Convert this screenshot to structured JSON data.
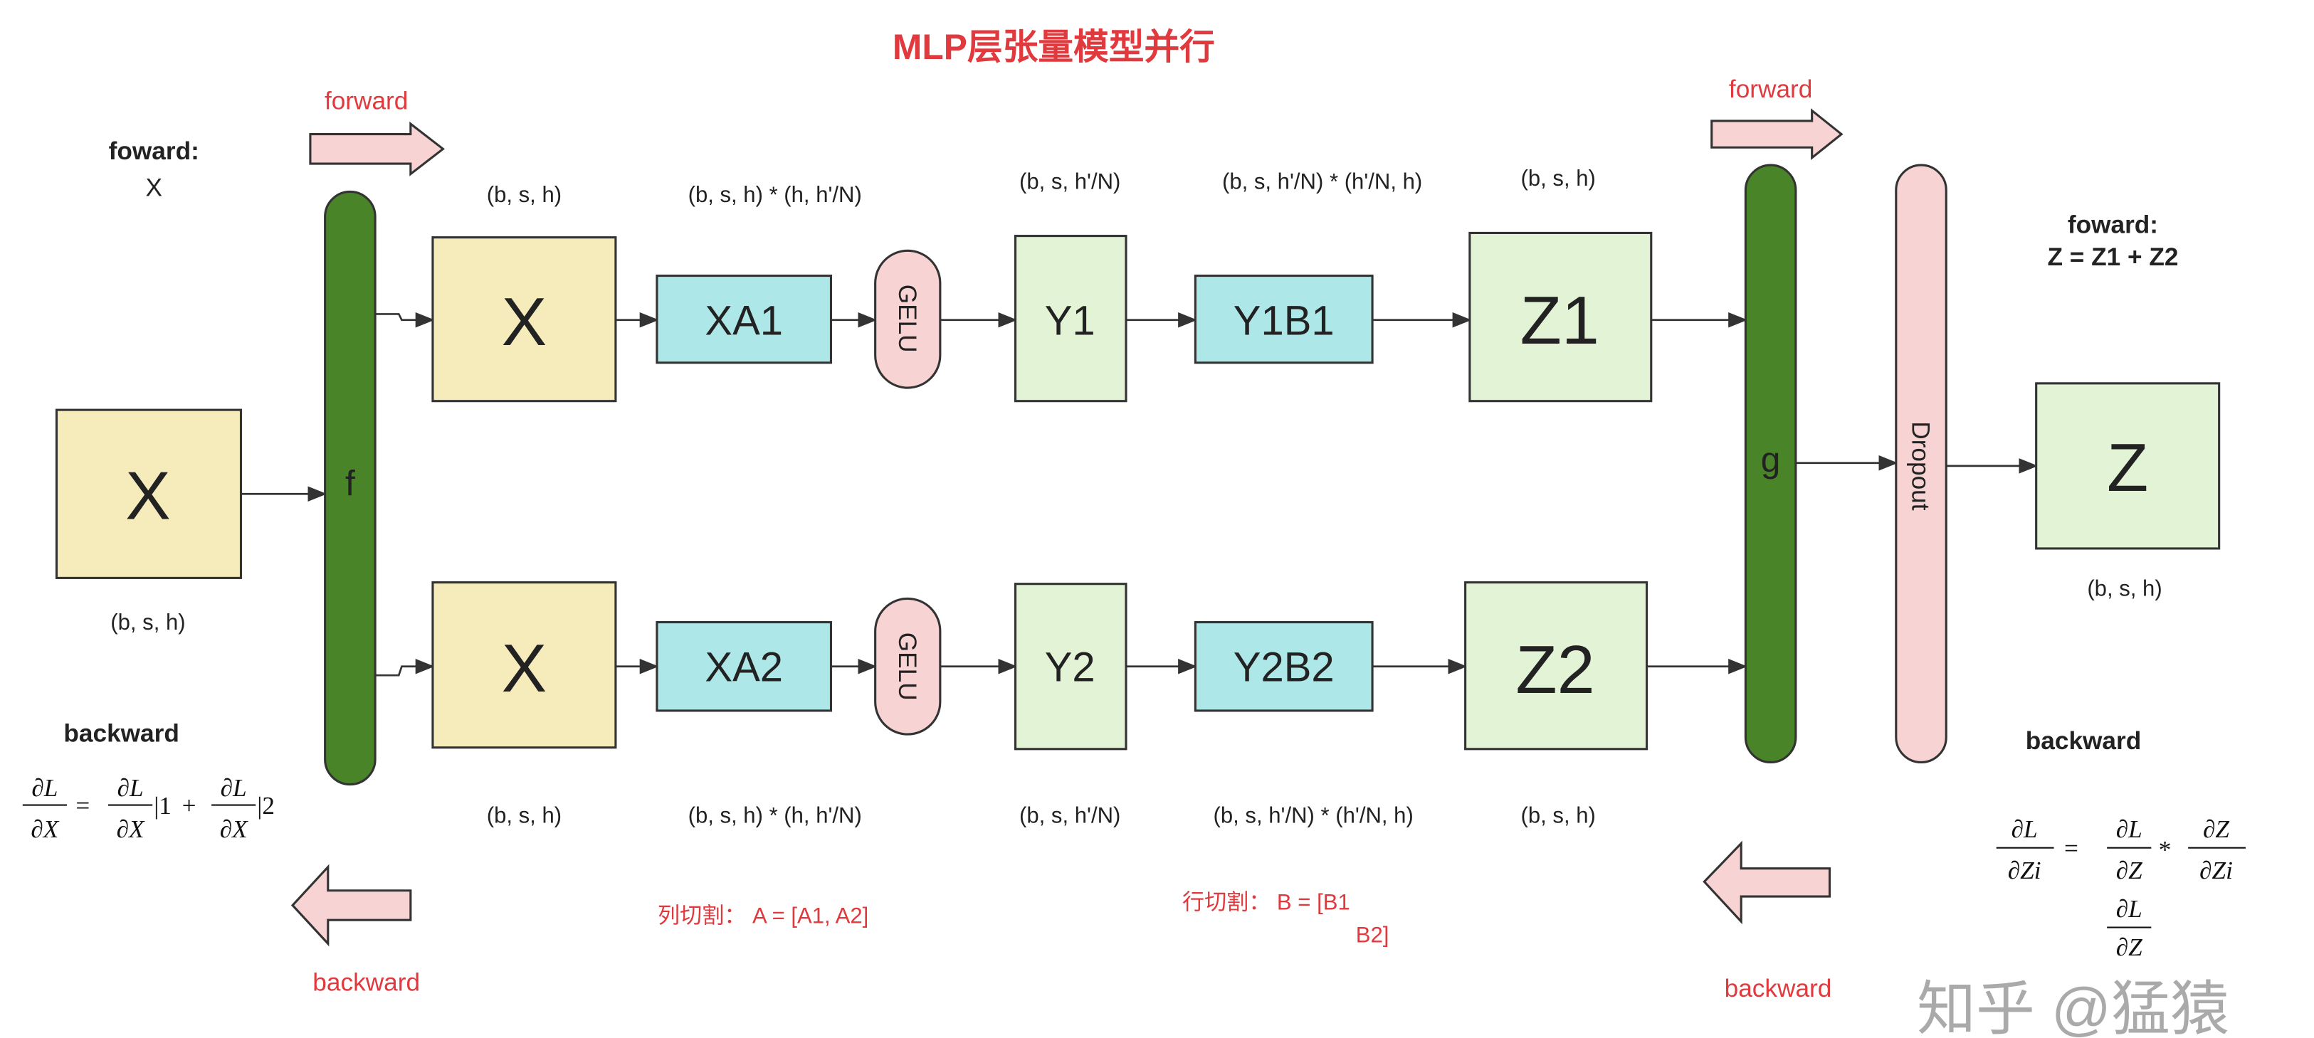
{
  "title": "MLP层张量模型并行",
  "colors": {
    "input_box": "#f5ebbb",
    "xa_box": "#aee7e8",
    "y_box": "#e3f4d6",
    "gelu": "#f8d3d3",
    "bar": "#4a8429",
    "dropout": "#f8d3d3",
    "arrow_fill": "#f8d3d3",
    "accent_red": "#e0393e"
  },
  "left": {
    "forward_label": "forward",
    "forward_note": "foward:",
    "forward_var": "X",
    "input_box": "X",
    "input_shape": "(b, s, h)",
    "backward_note": "backward",
    "backward_label": "backward",
    "formula": {
      "num": "∂L",
      "den": "∂X",
      "eq": "=",
      "bar1": "|1",
      "plus": "+",
      "bar2": "|2"
    }
  },
  "f_bar": "f",
  "g_bar": "g",
  "dropout": "Dropout",
  "rows": [
    {
      "x": "X",
      "xa": "XA1",
      "gelu": "GELU",
      "y": "Y1",
      "yb": "Y1B1",
      "z": "Z1"
    },
    {
      "x": "X",
      "xa": "XA2",
      "gelu": "GELU",
      "y": "Y2",
      "yb": "Y2B2",
      "z": "Z2"
    }
  ],
  "shapes": {
    "x": "(b, s, h)",
    "xa": "(b, s, h) * (h, h'/N)",
    "y": "(b, s,  h'/N)",
    "yb": "(b, s, h'/N) * (h'/N, h)",
    "z": "(b, s, h)"
  },
  "split_notes": {
    "column": "列切割：  A = [A1, A2]",
    "row_line1": "行切割：  B = [B1",
    "row_line2": "B2]"
  },
  "right": {
    "forward_label": "forward",
    "forward_note": "foward:",
    "forward_eq": "Z = Z1 + Z2",
    "output_box": "Z",
    "output_shape": "(b, s, h)",
    "backward_note": "backward",
    "backward_label": "backward",
    "formula": {
      "lhs_num": "∂L",
      "lhs_den": "∂Zi",
      "eq": "=",
      "a_num": "∂L",
      "a_den": "∂Z",
      "times": "*",
      "b_num": "∂Z",
      "b_den": "∂Zi",
      "extra_num": "∂L",
      "extra_den": "∂Z"
    }
  },
  "watermark": "知乎 @猛猿"
}
